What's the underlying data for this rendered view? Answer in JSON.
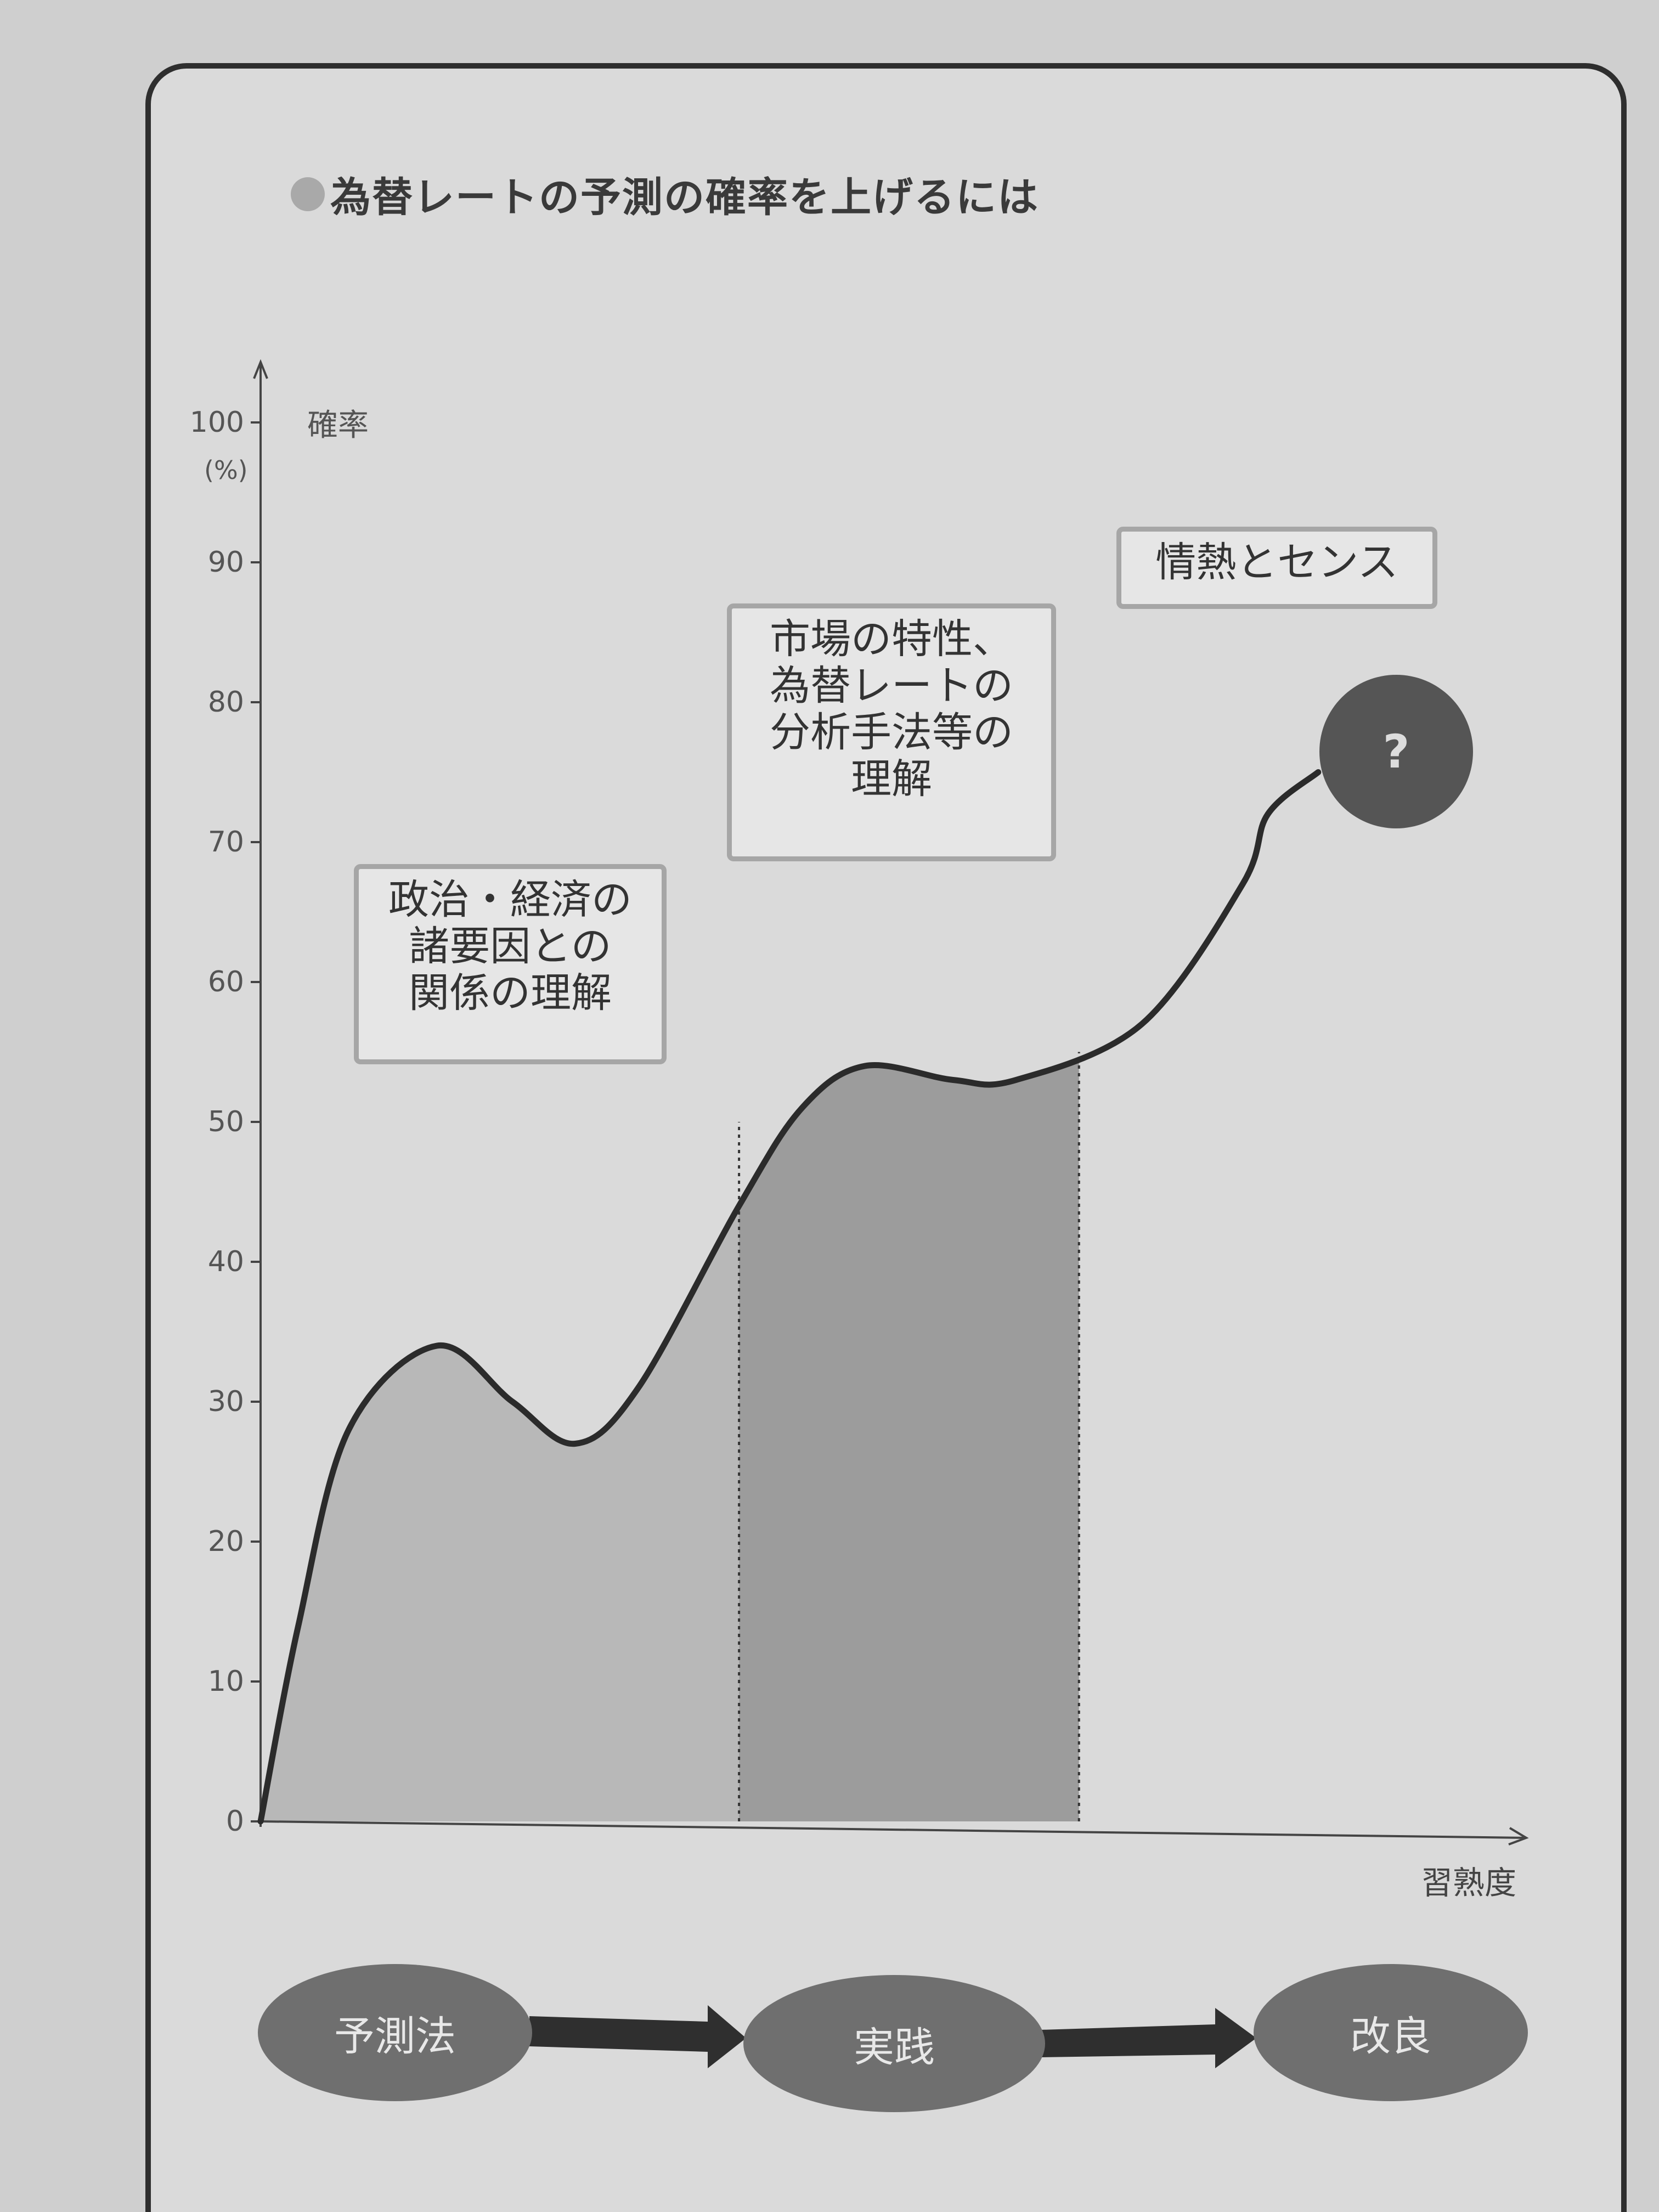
{
  "title": "為替レートの予測の確率を上げるには",
  "chart_data": {
    "type": "area",
    "title": "為替レートの予測の確率を上げるには",
    "ylabel": "確率",
    "yunit": "(%)",
    "xlabel": "習熟度",
    "ylim": [
      0,
      100
    ],
    "yticks": [
      "0",
      "10",
      "20",
      "30",
      "40",
      "50",
      "60",
      "70",
      "80",
      "90",
      "100"
    ],
    "grid": false,
    "x": [
      0,
      0.03,
      0.07,
      0.14,
      0.2,
      0.25,
      0.3,
      0.38,
      0.43,
      0.48,
      0.55,
      0.6,
      0.7,
      0.78,
      0.8,
      0.84
    ],
    "y": [
      0,
      14,
      28,
      34,
      30,
      27,
      31,
      44,
      51,
      54,
      53,
      53,
      57,
      67,
      72,
      75
    ],
    "shaded_regions": [
      {
        "x_start": 0,
        "x_end": 0.38,
        "shade": "light"
      },
      {
        "x_start": 0.38,
        "x_end": 0.65,
        "shade": "dark"
      }
    ],
    "annotations": [
      {
        "id": "politics",
        "text": "政治・経済の\n諸要因との\n関係の理解"
      },
      {
        "id": "market",
        "text": "市場の特性、\n為替レートの\n分析手法等の\n理解"
      },
      {
        "id": "passion",
        "text": "情熱とセンス"
      },
      {
        "id": "question",
        "text": "?"
      }
    ],
    "steps": [
      "予測法",
      "実践",
      "改良"
    ]
  },
  "colors": {
    "page": "#cfcfcf",
    "panel": "#dadada",
    "line": "#2b2b2b",
    "shade_light": "#b8b8b8",
    "shade_dark": "#9c9c9c",
    "oval": "#6f6f6f",
    "question_circle": "#555555"
  }
}
